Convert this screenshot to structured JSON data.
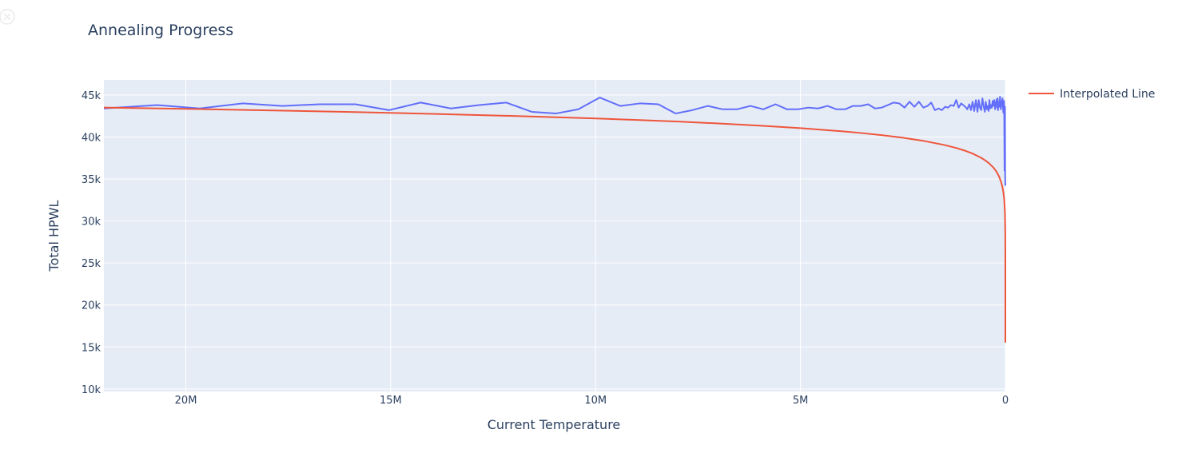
{
  "colors": {
    "plot_bg": "#e5ecf6",
    "grid": "#ffffff",
    "text": "#2a3f5f",
    "series_blue": "#636efa",
    "series_red": "#ef553b"
  },
  "icons": {
    "corner": "close-circle-icon"
  },
  "chart_data": {
    "type": "line",
    "title": "Annealing Progress",
    "xlabel": "Current Temperature",
    "ylabel": "Total HPWL",
    "xlim": [
      22000000,
      0
    ],
    "ylim": [
      9700,
      46800
    ],
    "x_reversed": true,
    "grid": true,
    "legend_position": "top-right",
    "x_ticks": [
      {
        "value": 20000000,
        "label": "20M"
      },
      {
        "value": 15000000,
        "label": "15M"
      },
      {
        "value": 10000000,
        "label": "10M"
      },
      {
        "value": 5000000,
        "label": "5M"
      },
      {
        "value": 0,
        "label": "0"
      }
    ],
    "y_ticks": [
      {
        "value": 10000,
        "label": "10k"
      },
      {
        "value": 15000,
        "label": "15k"
      },
      {
        "value": 20000,
        "label": "20k"
      },
      {
        "value": 25000,
        "label": "25k"
      },
      {
        "value": 30000,
        "label": "30k"
      },
      {
        "value": 35000,
        "label": "35k"
      },
      {
        "value": 40000,
        "label": "40k"
      },
      {
        "value": 45000,
        "label": "45k"
      }
    ],
    "series": [
      {
        "name": "",
        "color": "#636efa",
        "points": [
          [
            22000000,
            43400
          ],
          [
            20700000,
            43800
          ],
          [
            19660000,
            43400
          ],
          [
            18610000,
            44000
          ],
          [
            17640000,
            43700
          ],
          [
            16730000,
            43900
          ],
          [
            15860000,
            43900
          ],
          [
            15040000,
            43200
          ],
          [
            14270000,
            44100
          ],
          [
            13530000,
            43400
          ],
          [
            12840000,
            43800
          ],
          [
            12180000,
            44100
          ],
          [
            11560000,
            43000
          ],
          [
            10970000,
            42800
          ],
          [
            10420000,
            43300
          ],
          [
            9900000,
            44700
          ],
          [
            9400000,
            43700
          ],
          [
            8920000,
            44000
          ],
          [
            8470000,
            43900
          ],
          [
            8050000,
            42800
          ],
          [
            7640000,
            43200
          ],
          [
            7260000,
            43700
          ],
          [
            6900000,
            43300
          ],
          [
            6550000,
            43300
          ],
          [
            6220000,
            43700
          ],
          [
            5910000,
            43300
          ],
          [
            5610000,
            43900
          ],
          [
            5330000,
            43300
          ],
          [
            5060000,
            43300
          ],
          [
            4810000,
            43500
          ],
          [
            4570000,
            43400
          ],
          [
            4340000,
            43700
          ],
          [
            4120000,
            43300
          ],
          [
            3910000,
            43300
          ],
          [
            3720000,
            43700
          ],
          [
            3530000,
            43700
          ],
          [
            3350000,
            43900
          ],
          [
            3180000,
            43400
          ],
          [
            3020000,
            43500
          ],
          [
            2870000,
            43800
          ],
          [
            2730000,
            44100
          ],
          [
            2590000,
            44000
          ],
          [
            2460000,
            43500
          ],
          [
            2340000,
            44200
          ],
          [
            2220000,
            43600
          ],
          [
            2110000,
            44200
          ],
          [
            2000000,
            43500
          ],
          [
            1900000,
            43700
          ],
          [
            1810000,
            44100
          ],
          [
            1720000,
            43200
          ],
          [
            1630000,
            43400
          ],
          [
            1550000,
            43200
          ],
          [
            1470000,
            43600
          ],
          [
            1400000,
            43500
          ],
          [
            1330000,
            43800
          ],
          [
            1260000,
            43700
          ],
          [
            1200000,
            44400
          ],
          [
            1140000,
            43500
          ],
          [
            1080000,
            44000
          ],
          [
            1030000,
            43800
          ],
          [
            980000,
            43600
          ],
          [
            930000,
            43300
          ],
          [
            880000,
            43900
          ],
          [
            840000,
            43200
          ],
          [
            800000,
            44200
          ],
          [
            760000,
            43100
          ],
          [
            720000,
            44400
          ],
          [
            680000,
            43000
          ],
          [
            650000,
            44400
          ],
          [
            620000,
            43500
          ],
          [
            590000,
            43200
          ],
          [
            560000,
            44600
          ],
          [
            530000,
            43600
          ],
          [
            500000,
            43000
          ],
          [
            480000,
            44200
          ],
          [
            450000,
            43300
          ],
          [
            430000,
            43700
          ],
          [
            410000,
            43100
          ],
          [
            390000,
            44400
          ],
          [
            370000,
            43400
          ],
          [
            350000,
            43800
          ],
          [
            330000,
            43500
          ],
          [
            310000,
            44300
          ],
          [
            300000,
            43700
          ],
          [
            280000,
            43900
          ],
          [
            270000,
            44400
          ],
          [
            250000,
            43300
          ],
          [
            240000,
            44100
          ],
          [
            230000,
            43800
          ],
          [
            210000,
            44500
          ],
          [
            200000,
            43500
          ],
          [
            190000,
            44600
          ],
          [
            180000,
            43200
          ],
          [
            170000,
            44200
          ],
          [
            150000,
            43600
          ],
          [
            130000,
            44800
          ],
          [
            110000,
            43300
          ],
          [
            90000,
            44100
          ],
          [
            70000,
            44600
          ],
          [
            50000,
            42900
          ],
          [
            30000,
            44300
          ],
          [
            20000,
            36000
          ],
          [
            10000,
            43600
          ],
          [
            5000,
            35200
          ],
          [
            2000,
            34600
          ],
          [
            0,
            34200
          ]
        ]
      },
      {
        "name": "Interpolated Line",
        "color": "#ef553b",
        "model": {
          "type": "log_linear",
          "a": 15530,
          "b": 1655
        },
        "sample_x": [
          22000000,
          20000000,
          18000000,
          16000000,
          14000000,
          12000000,
          10000000,
          9000000,
          8000000,
          7000000,
          6000000,
          5000000,
          4000000,
          3500000,
          3000000,
          2500000,
          2000000,
          1500000,
          1200000,
          1000000,
          800000,
          600000,
          500000,
          400000,
          300000,
          250000,
          200000,
          150000,
          100000,
          70000,
          50000,
          35000,
          25000,
          15000,
          10000,
          7000,
          5000,
          3500,
          2500,
          1800,
          1300,
          1000,
          700,
          500,
          350,
          250,
          180,
          130,
          100,
          70,
          50,
          35,
          25,
          17,
          12,
          9,
          7,
          5,
          4,
          3,
          2.4,
          2,
          1.6,
          1.2,
          1
        ]
      }
    ]
  }
}
